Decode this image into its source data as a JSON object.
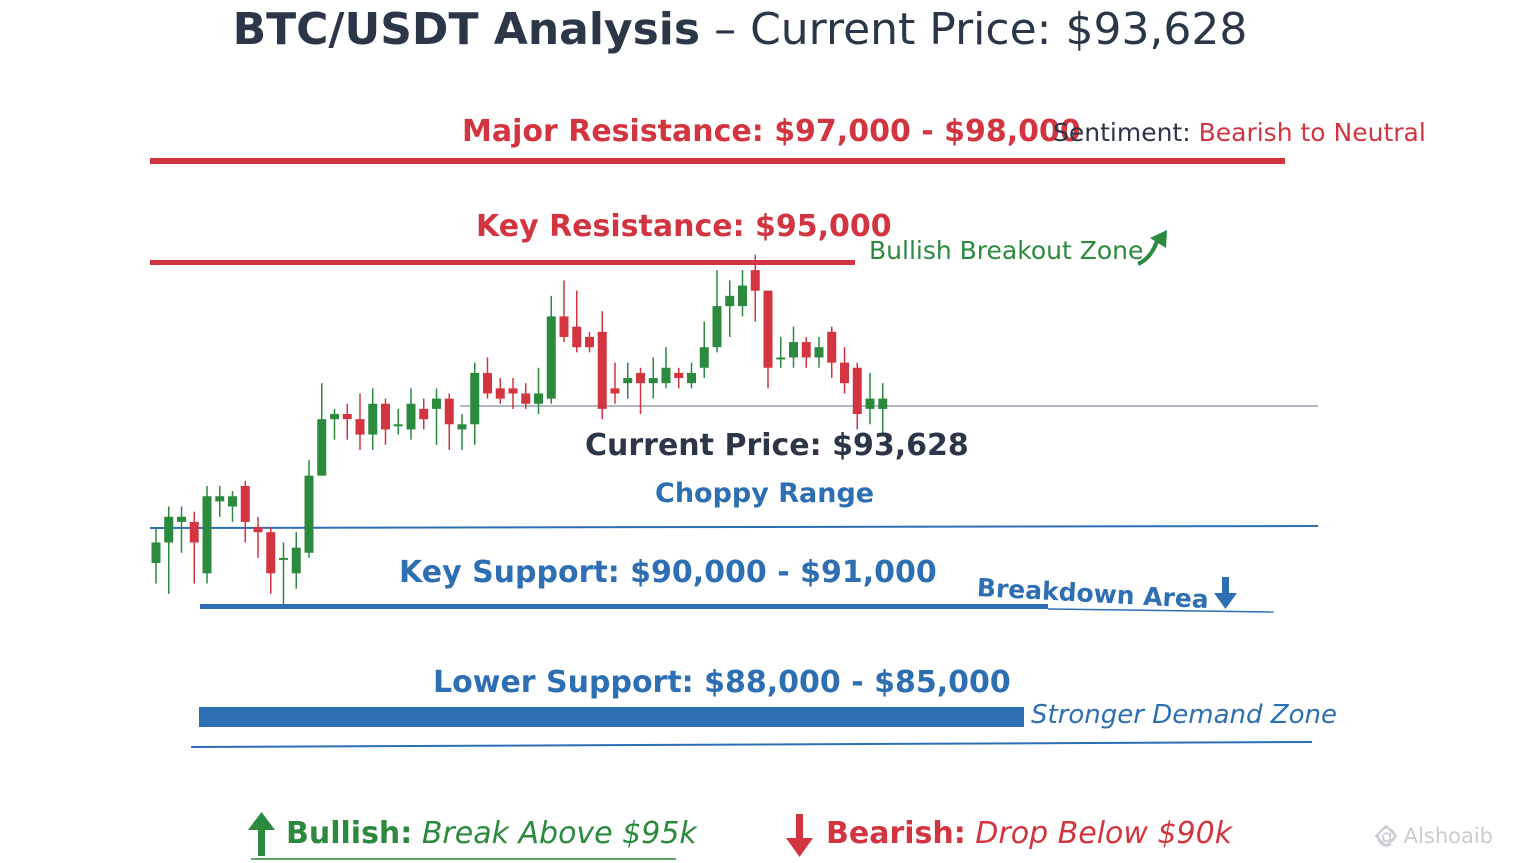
{
  "title": {
    "main": "BTC/USDT Analysis",
    "sep": " – ",
    "sub": "Current Price: $93,628"
  },
  "levels": {
    "major_resistance": "Major Resistance: $97,000 - $98,000",
    "key_resistance": "Key Resistance: $95,000",
    "current_price": "Current Price: $93,628",
    "choppy": "Choppy Range",
    "key_support": "Key Support: $90,000 - $91,000",
    "lower_support": "Lower Support: $88,000 - $85,000"
  },
  "sentiment": {
    "label": "Sentiment: ",
    "value": "Bearish to Neutral"
  },
  "zones": {
    "bullish_breakout": "Bullish Breakout Zone",
    "breakdown": "Breakdown Area",
    "demand": "Stronger Demand Zone"
  },
  "scenarios": {
    "bullish_label": "Bullish:",
    "bullish_text": "Break Above $95k",
    "bearish_label": "Bearish:",
    "bearish_text": "Drop Below $90k"
  },
  "watermark": "@ Alshoaib",
  "colors": {
    "bullish": "#2b8a3e",
    "bearish": "#d33540",
    "support": "#2e6fb3",
    "text": "#2b3648"
  },
  "chart_data": {
    "type": "candlestick",
    "title": "BTC/USDT Analysis – Current Price: $93,628",
    "levels": [
      {
        "name": "Major Resistance",
        "low": 97000,
        "high": 98000
      },
      {
        "name": "Key Resistance",
        "value": 95000
      },
      {
        "name": "Current Price",
        "value": 93628
      },
      {
        "name": "Key Support",
        "low": 90000,
        "high": 91000
      },
      {
        "name": "Lower Support",
        "low": 85000,
        "high": 88000
      }
    ],
    "candles": [
      [
        92100,
        92300,
        92450,
        91900
      ],
      [
        92300,
        92550,
        92650,
        91800
      ],
      [
        92500,
        92550,
        92650,
        92200
      ],
      [
        92500,
        92300,
        92600,
        91900
      ],
      [
        92000,
        92750,
        92850,
        91900
      ],
      [
        92700,
        92750,
        92850,
        92550
      ],
      [
        92650,
        92750,
        92800,
        92500
      ],
      [
        92850,
        92500,
        92900,
        92300
      ],
      [
        92450,
        92400,
        92550,
        92150
      ],
      [
        92400,
        92000,
        92450,
        91800
      ],
      [
        92150,
        92150,
        92300,
        91700
      ],
      [
        92000,
        92250,
        92400,
        91850
      ],
      [
        92200,
        92950,
        93100,
        92150
      ],
      [
        92950,
        93500,
        93850,
        92950
      ],
      [
        93500,
        93550,
        93600,
        93300
      ],
      [
        93550,
        93500,
        93650,
        93300
      ],
      [
        93500,
        93350,
        93750,
        93200
      ],
      [
        93350,
        93650,
        93800,
        93200
      ],
      [
        93650,
        93400,
        93700,
        93250
      ],
      [
        93450,
        93450,
        93600,
        93350
      ],
      [
        93400,
        93650,
        93800,
        93300
      ],
      [
        93600,
        93500,
        93700,
        93400
      ],
      [
        93600,
        93700,
        93800,
        93250
      ],
      [
        93700,
        93450,
        93750,
        93200
      ],
      [
        93400,
        93450,
        93550,
        93200
      ],
      [
        93450,
        93950,
        94050,
        93250
      ],
      [
        93950,
        93750,
        94100,
        93700
      ],
      [
        93800,
        93700,
        93900,
        93650
      ],
      [
        93800,
        93750,
        93900,
        93600
      ],
      [
        93750,
        93650,
        93850,
        93600
      ],
      [
        93650,
        93750,
        94000,
        93550
      ],
      [
        93700,
        94500,
        94700,
        93650
      ],
      [
        94500,
        94300,
        94850,
        94250
      ],
      [
        94400,
        94200,
        94750,
        94150
      ],
      [
        94300,
        94200,
        94350,
        94150
      ],
      [
        94350,
        93600,
        94550,
        93500
      ],
      [
        93800,
        93750,
        94050,
        93650
      ],
      [
        93850,
        93900,
        94050,
        93700
      ],
      [
        93950,
        93850,
        94000,
        93550
      ],
      [
        93850,
        93900,
        94100,
        93700
      ],
      [
        93850,
        94000,
        94200,
        93800
      ],
      [
        93950,
        93900,
        94000,
        93800
      ],
      [
        93850,
        93950,
        94050,
        93800
      ],
      [
        94000,
        94200,
        94450,
        93900
      ],
      [
        94200,
        94600,
        94950,
        94150
      ],
      [
        94600,
        94700,
        94850,
        94300
      ],
      [
        94600,
        94800,
        94950,
        94500
      ],
      [
        94950,
        94750,
        95100,
        94450
      ],
      [
        94750,
        94000,
        94750,
        93800
      ],
      [
        94100,
        94100,
        94300,
        94000
      ],
      [
        94100,
        94250,
        94400,
        94000
      ],
      [
        94250,
        94100,
        94300,
        94000
      ],
      [
        94100,
        94200,
        94300,
        94000
      ],
      [
        94350,
        94050,
        94400,
        93900
      ],
      [
        94050,
        93850,
        94200,
        93750
      ],
      [
        94000,
        93550,
        94050,
        93400
      ],
      [
        93600,
        93700,
        93950,
        93450
      ],
      [
        93600,
        93700,
        93850,
        93350
      ]
    ]
  }
}
